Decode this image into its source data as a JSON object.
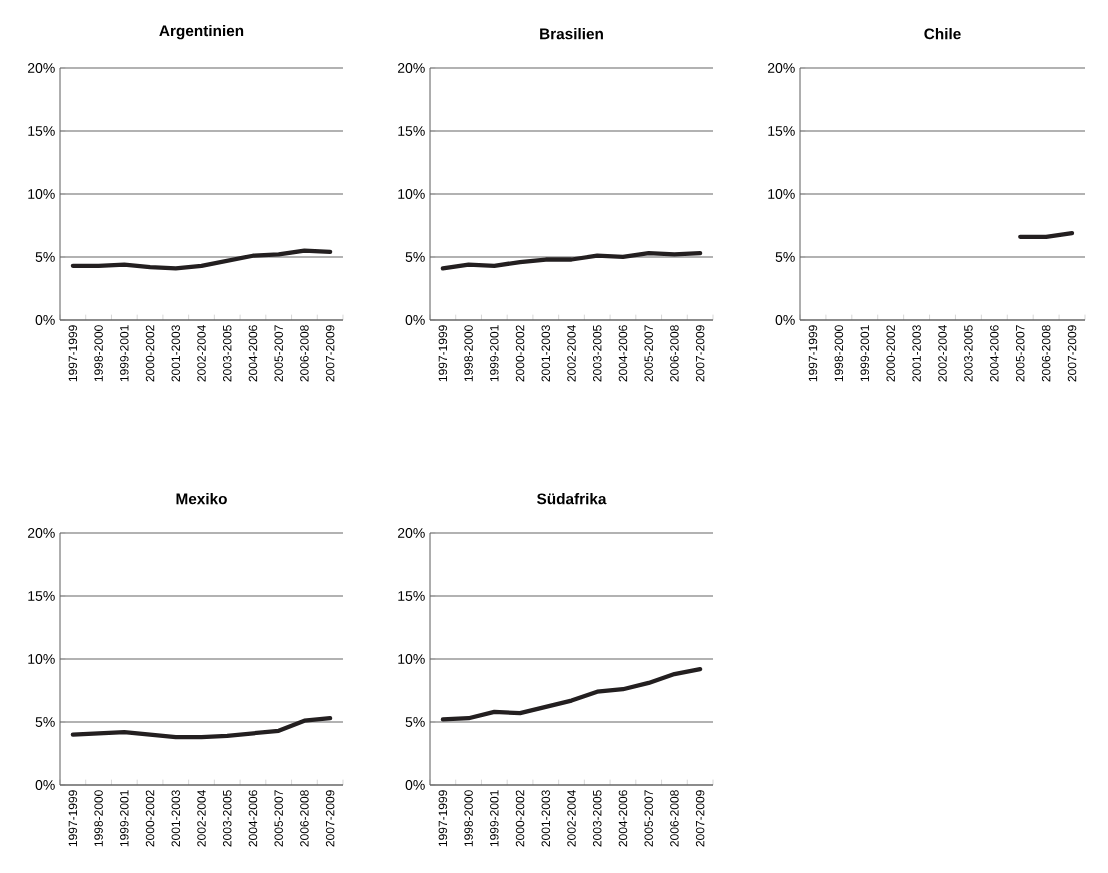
{
  "chart_data": [
    {
      "type": "line",
      "title": "Argentinien",
      "categories": [
        "1997-1999",
        "1998-2000",
        "1999-2001",
        "2000-2002",
        "2001-2003",
        "2002-2004",
        "2003-2005",
        "2004-2006",
        "2005-2007",
        "2006-2008",
        "2007-2009"
      ],
      "values": [
        4.3,
        4.3,
        4.4,
        4.2,
        4.1,
        4.3,
        4.7,
        5.1,
        5.2,
        5.5,
        5.4
      ],
      "color": "#231f20",
      "ylim": [
        0,
        20
      ],
      "yticks": [
        {
          "value": 0,
          "label": "0%"
        },
        {
          "value": 5,
          "label": "5%"
        },
        {
          "value": 10,
          "label": "10%"
        },
        {
          "value": 15,
          "label": "15%"
        },
        {
          "value": 20,
          "label": "20%"
        }
      ],
      "grid": "y"
    },
    {
      "type": "line",
      "title": "Brasilien",
      "categories": [
        "1997-1999",
        "1998-2000",
        "1999-2001",
        "2000-2002",
        "2001-2003",
        "2002-2004",
        "2003-2005",
        "2004-2006",
        "2005-2007",
        "2006-2008",
        "2007-2009"
      ],
      "values": [
        4.1,
        4.4,
        4.3,
        4.6,
        4.8,
        4.8,
        5.1,
        5.0,
        5.3,
        5.2,
        5.3
      ],
      "color": "#231f20",
      "ylim": [
        0,
        20
      ],
      "yticks": [
        {
          "value": 0,
          "label": "0%"
        },
        {
          "value": 5,
          "label": "5%"
        },
        {
          "value": 10,
          "label": "10%"
        },
        {
          "value": 15,
          "label": "15%"
        },
        {
          "value": 20,
          "label": "20%"
        }
      ],
      "grid": "y"
    },
    {
      "type": "line",
      "title": "Chile",
      "categories": [
        "1997-1999",
        "1998-2000",
        "1999-2001",
        "2000-2002",
        "2001-2003",
        "2002-2004",
        "2003-2005",
        "2004-2006",
        "2005-2007",
        "2006-2008",
        "2007-2009"
      ],
      "values": [
        null,
        null,
        null,
        null,
        null,
        null,
        null,
        null,
        6.6,
        6.6,
        6.9
      ],
      "color": "#231f20",
      "ylim": [
        0,
        20
      ],
      "yticks": [
        {
          "value": 0,
          "label": "0%"
        },
        {
          "value": 5,
          "label": "5%"
        },
        {
          "value": 10,
          "label": "10%"
        },
        {
          "value": 15,
          "label": "15%"
        },
        {
          "value": 20,
          "label": "20%"
        }
      ],
      "grid": "y"
    },
    {
      "type": "line",
      "title": "Mexiko",
      "categories": [
        "1997-1999",
        "1998-2000",
        "1999-2001",
        "2000-2002",
        "2001-2003",
        "2002-2004",
        "2003-2005",
        "2004-2006",
        "2005-2007",
        "2006-2008",
        "2007-2009"
      ],
      "values": [
        4.0,
        4.1,
        4.2,
        4.0,
        3.8,
        3.8,
        3.9,
        4.1,
        4.3,
        5.1,
        5.3
      ],
      "color": "#231f20",
      "ylim": [
        0,
        20
      ],
      "yticks": [
        {
          "value": 0,
          "label": "0%"
        },
        {
          "value": 5,
          "label": "5%"
        },
        {
          "value": 10,
          "label": "10%"
        },
        {
          "value": 15,
          "label": "15%"
        },
        {
          "value": 20,
          "label": "20%"
        }
      ],
      "grid": "y"
    },
    {
      "type": "line",
      "title": "Südafrika",
      "categories": [
        "1997-1999",
        "1998-2000",
        "1999-2001",
        "2000-2002",
        "2001-2003",
        "2002-2004",
        "2003-2005",
        "2004-2006",
        "2005-2007",
        "2006-2008",
        "2007-2009"
      ],
      "values": [
        5.2,
        5.3,
        5.8,
        5.7,
        6.2,
        6.7,
        7.4,
        7.6,
        8.1,
        8.8,
        9.2
      ],
      "color": "#231f20",
      "ylim": [
        0,
        20
      ],
      "yticks": [
        {
          "value": 0,
          "label": "0%"
        },
        {
          "value": 5,
          "label": "5%"
        },
        {
          "value": 10,
          "label": "10%"
        },
        {
          "value": 15,
          "label": "15%"
        },
        {
          "value": 20,
          "label": "20%"
        }
      ],
      "grid": "y"
    }
  ]
}
